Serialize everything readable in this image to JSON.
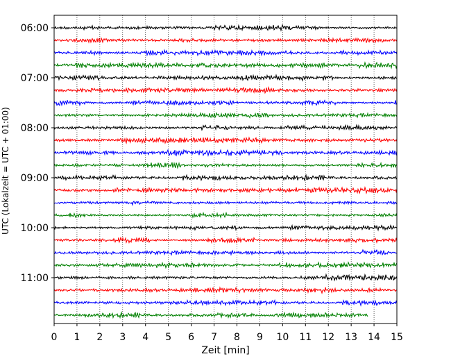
{
  "chart_data": {
    "type": "line",
    "title": "",
    "xlabel": "Zeit  [min]",
    "ylabel": "UTC (Lokalzeit = UTC + 01:00)",
    "xlim": [
      0,
      15
    ],
    "x_ticks": [
      "0",
      "1",
      "2",
      "3",
      "4",
      "5",
      "6",
      "7",
      "8",
      "9",
      "10",
      "11",
      "12",
      "13",
      "14",
      "15"
    ],
    "y_ticks": [
      "06:00",
      "07:00",
      "08:00",
      "09:00",
      "10:00",
      "11:00"
    ],
    "grid": "vertical dotted lines at each minute",
    "line_colors": [
      "#000000",
      "#ff0000",
      "#0000ff",
      "#008000"
    ],
    "trace_interval_minutes": 15,
    "traces_start": "06:00",
    "last_trace_end_minute": 13.75,
    "traces": [
      {
        "start": "06:00",
        "color": "#000000"
      },
      {
        "start": "06:15",
        "color": "#ff0000"
      },
      {
        "start": "06:30",
        "color": "#0000ff"
      },
      {
        "start": "06:45",
        "color": "#008000"
      },
      {
        "start": "07:00",
        "color": "#000000"
      },
      {
        "start": "07:15",
        "color": "#ff0000"
      },
      {
        "start": "07:30",
        "color": "#0000ff"
      },
      {
        "start": "07:45",
        "color": "#008000"
      },
      {
        "start": "08:00",
        "color": "#000000"
      },
      {
        "start": "08:15",
        "color": "#ff0000"
      },
      {
        "start": "08:30",
        "color": "#0000ff"
      },
      {
        "start": "08:45",
        "color": "#008000"
      },
      {
        "start": "09:00",
        "color": "#000000"
      },
      {
        "start": "09:15",
        "color": "#ff0000"
      },
      {
        "start": "09:30",
        "color": "#0000ff"
      },
      {
        "start": "09:45",
        "color": "#008000"
      },
      {
        "start": "10:00",
        "color": "#000000"
      },
      {
        "start": "10:15",
        "color": "#ff0000"
      },
      {
        "start": "10:30",
        "color": "#0000ff"
      },
      {
        "start": "10:45",
        "color": "#008000"
      },
      {
        "start": "11:00",
        "color": "#000000"
      },
      {
        "start": "11:15",
        "color": "#ff0000"
      },
      {
        "start": "11:30",
        "color": "#0000ff"
      },
      {
        "start": "11:45",
        "color": "#008000"
      }
    ]
  }
}
